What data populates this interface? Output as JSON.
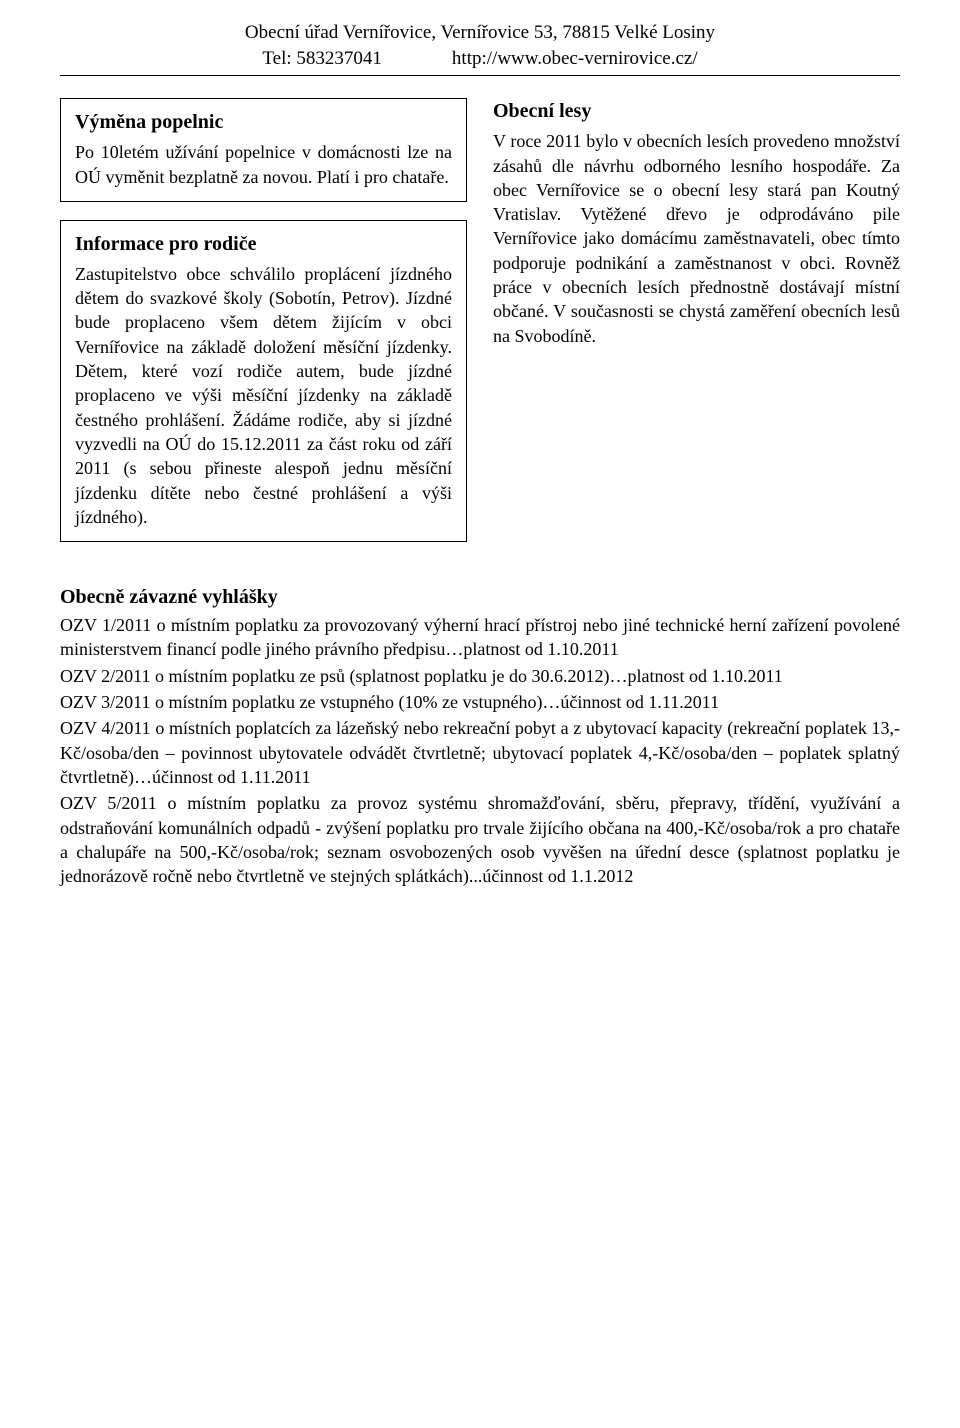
{
  "header": {
    "address": "Obecní úřad Vernířovice, Vernířovice 53, 78815 Velké Losiny",
    "tel_label": "Tel: 583237041",
    "url": "http://www.obec-vernirovice.cz/"
  },
  "box1": {
    "title": "Výměna popelnic",
    "body": "Po 10letém užívání popelnice v domácnosti lze na OÚ vyměnit bezplatně za novou. Platí i pro chataře."
  },
  "box2": {
    "title": "Informace pro rodiče",
    "body": "Zastupitelstvo obce schválilo proplácení jízdného dětem do svazkové školy (Sobotín, Petrov). Jízdné bude proplaceno všem dětem žijícím v obci Vernířovice na základě doložení měsíční jízdenky. Dětem, které vozí rodiče autem, bude jízdné proplaceno ve výši měsíční jízdenky na základě čestného prohlášení. Žádáme rodiče, aby si jízdné vyzvedli na OÚ do 15.12.2011 za část roku od září 2011 (s sebou přineste alespoň jednu měsíční jízdenku dítěte nebo čestné prohlášení a výši jízdného)."
  },
  "right": {
    "title": "Obecní lesy",
    "body": "V roce 2011 bylo v obecních lesích provedeno množství zásahů dle návrhu odborného lesního hospodáře. Za obec Vernířovice se o obecní lesy stará pan Koutný Vratislav. Vytěžené dřevo je odprodáváno pile Vernířovice jako domácímu zaměstnavateli, obec tímto podporuje podnikání a zaměstnanost v obci. Rovněž práce v obecních lesích přednostně dostávají místní občané. V současnosti se chystá zaměření obecních lesů na Svobodíně."
  },
  "ozv": {
    "title": "Obecně závazné vyhlášky",
    "items": [
      "OZV 1/2011 o místním  poplatku za provozovaný výherní hrací přístroj nebo jiné technické herní zařízení povolené ministerstvem financí podle jiného právního předpisu…platnost od 1.10.2011",
      "OZV 2/2011 o místním poplatku ze psů (splatnost poplatku je do 30.6.2012)…platnost od 1.10.2011",
      "OZV 3/2011 o místním poplatku ze vstupného (10% ze vstupného)…účinnost od 1.11.2011",
      "OZV 4/2011 o místních poplatcích za lázeňský nebo rekreační pobyt a z ubytovací kapacity (rekreační poplatek 13,-Kč/osoba/den – povinnost ubytovatele odvádět čtvrtletně; ubytovací poplatek 4,-Kč/osoba/den – poplatek splatný čtvrtletně)…účinnost od 1.11.2011",
      "OZV 5/2011 o místním poplatku za provoz systému shromažďování, sběru, přepravy, třídění, využívání a odstraňování komunálních odpadů - zvýšení poplatku pro trvale žijícího občana na 400,-Kč/osoba/rok a pro chataře a chalupáře na 500,-Kč/osoba/rok; seznam osvobozených osob vyvěšen na úřední desce (splatnost poplatku je jednorázově ročně nebo čtvrtletně ve stejných splátkách)...účinnost od 1.1.2012"
    ]
  }
}
